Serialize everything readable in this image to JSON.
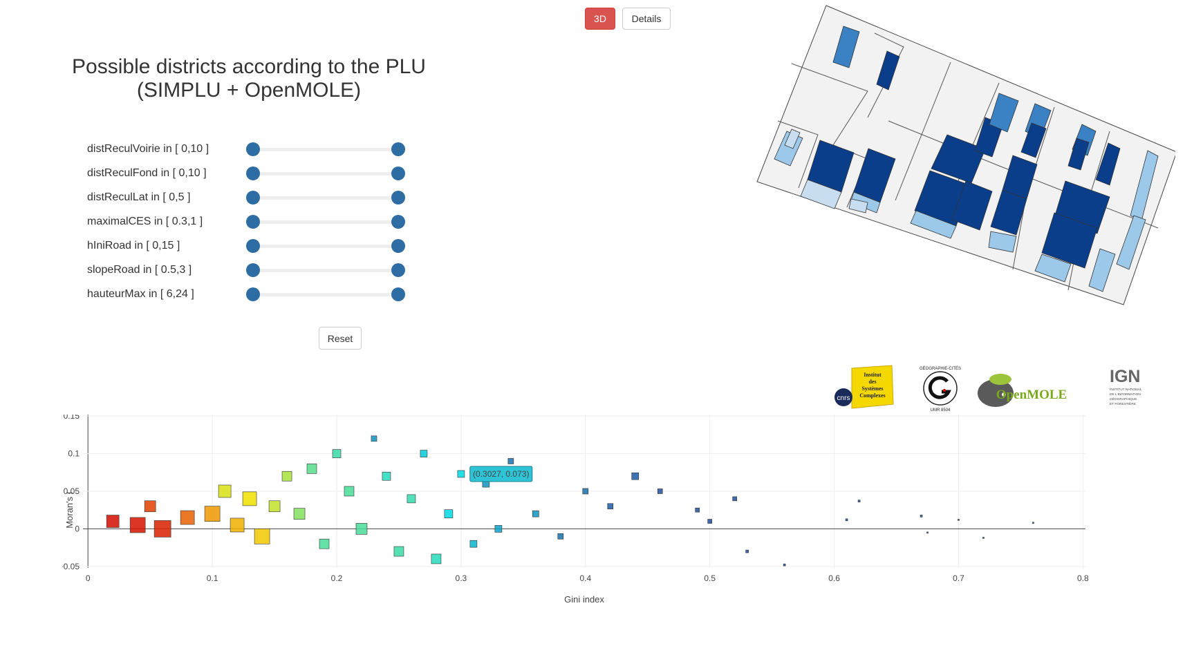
{
  "toolbar": {
    "btn_3d": "3D",
    "btn_details": "Details",
    "btn_3d_color": "#d9534f"
  },
  "panel": {
    "title_line1": "Possible districts according to the PLU",
    "title_line2": "(SIMPLU + OpenMOLE)",
    "reset_label": "Reset",
    "sliders": [
      {
        "label": "distReculVoirie in [ 0,10 ]",
        "min": 0,
        "max": 10
      },
      {
        "label": "distReculFond in [ 0,10 ]",
        "min": 0,
        "max": 10
      },
      {
        "label": "distReculLat in [ 0,5 ]",
        "min": 0,
        "max": 5
      },
      {
        "label": "maximalCES in [ 0.3,1 ]",
        "min": 0.3,
        "max": 1
      },
      {
        "label": "hIniRoad in [ 0,15 ]",
        "min": 0,
        "max": 15
      },
      {
        "label": "slopeRoad in [ 0.5,3 ]",
        "min": 0.5,
        "max": 3
      },
      {
        "label": "hauteurMax in [ 6,24 ]",
        "min": 6,
        "max": 24
      }
    ]
  },
  "logos": {
    "cnrs": "cnrs",
    "iscpif": [
      "Institut",
      "des",
      "Systèmes",
      "Complexes"
    ],
    "geographie": "GÉOGRAPHIE-CITÉS",
    "umr": "UMR 8504",
    "openmole": "OpenMOLE",
    "ign": "IGN",
    "ign_sub": [
      "INSTITUT NATIONAL",
      "DE L'INFORMATION",
      "GÉOGRAPHIQUE",
      "ET FORESTIÈRE"
    ]
  },
  "chart_data": {
    "type": "scatter",
    "xlabel": "Gini index",
    "ylabel": "Moran's I",
    "xlim": [
      -0.004,
      0.802
    ],
    "ylim": [
      -0.052,
      0.152
    ],
    "x_ticks": [
      0,
      0.1,
      0.2,
      0.3,
      0.4,
      0.5,
      0.6,
      0.7,
      0.8
    ],
    "x_tick_labels": [
      "0",
      "0.1",
      "0.2",
      "0.3",
      "0.4",
      "0.5",
      "0.6",
      "0.7",
      "0.8"
    ],
    "y_ticks": [
      -0.05,
      0,
      0.05,
      0.1,
      0.15
    ],
    "y_tick_labels": [
      "−0.05",
      "0",
      "0.05",
      "0.1",
      "0.15"
    ],
    "grid": true,
    "tooltip": {
      "x": 0.3027,
      "y": 0.073,
      "label": "(0.3027, 0.073)"
    },
    "colorscale": [
      "#1f4e9c",
      "#00d8e0",
      "#90e050",
      "#f0e000",
      "#f08000",
      "#d00000"
    ],
    "points": [
      {
        "x": 0.02,
        "y": 0.01,
        "s": 18,
        "c": 0.98
      },
      {
        "x": 0.04,
        "y": 0.005,
        "s": 22,
        "c": 0.97
      },
      {
        "x": 0.06,
        "y": 0.0,
        "s": 24,
        "c": 0.95
      },
      {
        "x": 0.08,
        "y": 0.015,
        "s": 20,
        "c": 0.85
      },
      {
        "x": 0.05,
        "y": 0.03,
        "s": 16,
        "c": 0.9
      },
      {
        "x": 0.1,
        "y": 0.02,
        "s": 22,
        "c": 0.75
      },
      {
        "x": 0.12,
        "y": 0.005,
        "s": 20,
        "c": 0.7
      },
      {
        "x": 0.13,
        "y": 0.04,
        "s": 20,
        "c": 0.6
      },
      {
        "x": 0.11,
        "y": 0.05,
        "s": 18,
        "c": 0.55
      },
      {
        "x": 0.14,
        "y": -0.01,
        "s": 22,
        "c": 0.65
      },
      {
        "x": 0.15,
        "y": 0.03,
        "s": 16,
        "c": 0.5
      },
      {
        "x": 0.16,
        "y": 0.07,
        "s": 14,
        "c": 0.45
      },
      {
        "x": 0.17,
        "y": 0.02,
        "s": 16,
        "c": 0.38
      },
      {
        "x": 0.18,
        "y": 0.08,
        "s": 14,
        "c": 0.32
      },
      {
        "x": 0.19,
        "y": -0.02,
        "s": 14,
        "c": 0.3
      },
      {
        "x": 0.2,
        "y": 0.1,
        "s": 12,
        "c": 0.28
      },
      {
        "x": 0.21,
        "y": 0.05,
        "s": 14,
        "c": 0.3
      },
      {
        "x": 0.22,
        "y": 0.0,
        "s": 16,
        "c": 0.3
      },
      {
        "x": 0.23,
        "y": 0.12,
        "s": 8,
        "c": 0.1
      },
      {
        "x": 0.24,
        "y": 0.07,
        "s": 12,
        "c": 0.25
      },
      {
        "x": 0.25,
        "y": -0.03,
        "s": 14,
        "c": 0.28
      },
      {
        "x": 0.26,
        "y": 0.04,
        "s": 12,
        "c": 0.27
      },
      {
        "x": 0.27,
        "y": 0.1,
        "s": 10,
        "c": 0.18
      },
      {
        "x": 0.28,
        "y": -0.04,
        "s": 14,
        "c": 0.25
      },
      {
        "x": 0.29,
        "y": 0.02,
        "s": 12,
        "c": 0.2
      },
      {
        "x": 0.3,
        "y": 0.073,
        "s": 10,
        "c": 0.2
      },
      {
        "x": 0.31,
        "y": -0.02,
        "s": 10,
        "c": 0.15
      },
      {
        "x": 0.32,
        "y": 0.06,
        "s": 10,
        "c": 0.1
      },
      {
        "x": 0.33,
        "y": 0.0,
        "s": 10,
        "c": 0.12
      },
      {
        "x": 0.34,
        "y": 0.09,
        "s": 8,
        "c": 0.05
      },
      {
        "x": 0.36,
        "y": 0.02,
        "s": 9,
        "c": 0.1
      },
      {
        "x": 0.38,
        "y": -0.01,
        "s": 8,
        "c": 0.05
      },
      {
        "x": 0.4,
        "y": 0.05,
        "s": 8,
        "c": 0.05
      },
      {
        "x": 0.42,
        "y": 0.03,
        "s": 8,
        "c": 0.02
      },
      {
        "x": 0.44,
        "y": 0.07,
        "s": 10,
        "c": 0.02
      },
      {
        "x": 0.46,
        "y": 0.05,
        "s": 7,
        "c": 0.0
      },
      {
        "x": 0.49,
        "y": 0.025,
        "s": 6,
        "c": 0.0
      },
      {
        "x": 0.5,
        "y": 0.01,
        "s": 6,
        "c": 0.0
      },
      {
        "x": 0.52,
        "y": 0.04,
        "s": 6,
        "c": 0.0
      },
      {
        "x": 0.53,
        "y": -0.03,
        "s": 4,
        "c": 0.0
      },
      {
        "x": 0.56,
        "y": -0.048,
        "s": 3,
        "c": 0.0
      },
      {
        "x": 0.62,
        "y": 0.037,
        "s": 3,
        "c": 0.0
      },
      {
        "x": 0.61,
        "y": 0.012,
        "s": 3,
        "c": 0.0
      },
      {
        "x": 0.67,
        "y": 0.017,
        "s": 3,
        "c": 0.0
      },
      {
        "x": 0.675,
        "y": -0.005,
        "s": 2,
        "c": 0.0
      },
      {
        "x": 0.7,
        "y": 0.012,
        "s": 2,
        "c": 0.0
      },
      {
        "x": 0.72,
        "y": -0.012,
        "s": 2,
        "c": 0.0
      },
      {
        "x": 0.76,
        "y": 0.008,
        "s": 2,
        "c": 0.0
      }
    ]
  }
}
